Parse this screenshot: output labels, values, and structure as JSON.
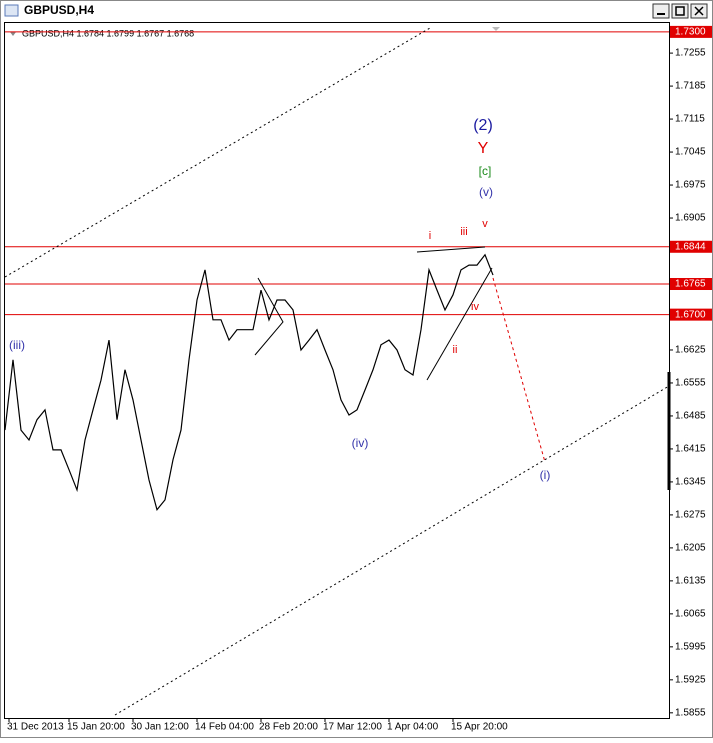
{
  "chart_data": {
    "type": "line",
    "window_title": "GBPUSD,H4",
    "info": "GBPUSD,H4  1.6784 1.6799 1.6767 1.6768",
    "series": [
      {
        "name": "GBPUSD",
        "color": "#000000",
        "x": [
          0,
          2,
          4,
          6,
          8,
          10,
          12,
          14,
          16,
          18,
          20,
          22,
          24,
          26,
          28,
          30,
          32,
          34,
          36,
          38,
          40,
          42,
          44,
          46,
          48,
          50,
          52,
          54,
          56,
          58,
          60,
          62,
          64,
          66,
          68,
          70,
          72,
          74,
          76,
          78,
          80,
          82,
          84,
          86,
          88,
          90,
          92,
          94,
          96,
          98,
          100,
          102,
          104,
          106,
          108,
          110,
          112,
          114,
          116,
          118,
          120,
          122
        ],
        "values": [
          1.6455,
          1.6604,
          1.6455,
          1.6434,
          1.6477,
          1.6498,
          1.6413,
          1.6413,
          1.6371,
          1.6328,
          1.6434,
          1.6498,
          1.6561,
          1.6646,
          1.6477,
          1.6583,
          1.6519,
          1.6434,
          1.6349,
          1.6286,
          1.6307,
          1.6392,
          1.6455,
          1.6604,
          1.6731,
          1.6795,
          1.6689,
          1.6689,
          1.6646,
          1.6668,
          1.6668,
          1.6668,
          1.6752,
          1.6689,
          1.6731,
          1.6731,
          1.671,
          1.6625,
          1.6646,
          1.6668,
          1.6625,
          1.6583,
          1.6519,
          1.6487,
          1.6498,
          1.654,
          1.6583,
          1.6636,
          1.6646,
          1.6625,
          1.6583,
          1.6572,
          1.6668,
          1.6795,
          1.6752,
          1.671,
          1.6742,
          1.6795,
          1.6805,
          1.6805,
          1.6827,
          1.6784
        ]
      }
    ],
    "hlines": [
      {
        "value": 1.73,
        "label": "1.7300"
      },
      {
        "value": 1.6844,
        "label": "1.6844"
      },
      {
        "value": 1.6765,
        "label": "1.6765"
      },
      {
        "value": 1.67,
        "label": "1.6700"
      }
    ],
    "hline_color": "#e00000",
    "ylim": [
      1.5844,
      1.7321
    ],
    "yticks": [
      1.7255,
      1.7185,
      1.7115,
      1.7045,
      1.6975,
      1.6905,
      1.6625,
      1.6555,
      1.6485,
      1.6415,
      1.6345,
      1.6275,
      1.6205,
      1.6135,
      1.6065,
      1.5995,
      1.5925,
      1.5855
    ],
    "xlim": [
      0,
      166
    ],
    "xticks": [
      {
        "value": 1,
        "label": "31 Dec 2013"
      },
      {
        "value": 16,
        "label": "15 Jan 20:00"
      },
      {
        "value": 32,
        "label": "30 Jan 12:00"
      },
      {
        "value": 48,
        "label": "14 Feb 04:00"
      },
      {
        "value": 64,
        "label": "28 Feb 20:00"
      },
      {
        "value": 80,
        "label": "17 Mar 12:00"
      },
      {
        "value": 96,
        "label": "1 Apr 04:00"
      },
      {
        "value": 112,
        "label": "15 Apr 20:00"
      }
    ],
    "annotations": [
      {
        "text": "(2)",
        "color": "#1a1aa0"
      },
      {
        "text": "Y",
        "color": "#e00000"
      },
      {
        "text": "[c]",
        "color": "#1a8a1a"
      },
      {
        "text": "(v)",
        "color": "#3333aa"
      },
      {
        "text": "i",
        "color": "#e00000"
      },
      {
        "text": "iii",
        "color": "#e00000"
      },
      {
        "text": "v",
        "color": "#e00000"
      },
      {
        "text": "iv",
        "color": "#e00000"
      },
      {
        "text": "ii",
        "color": "#e00000"
      },
      {
        "text": "(iii)",
        "color": "#3333aa"
      },
      {
        "text": "(iv)",
        "color": "#3333aa"
      },
      {
        "text": "(i)",
        "color": "#3333aa"
      }
    ]
  }
}
